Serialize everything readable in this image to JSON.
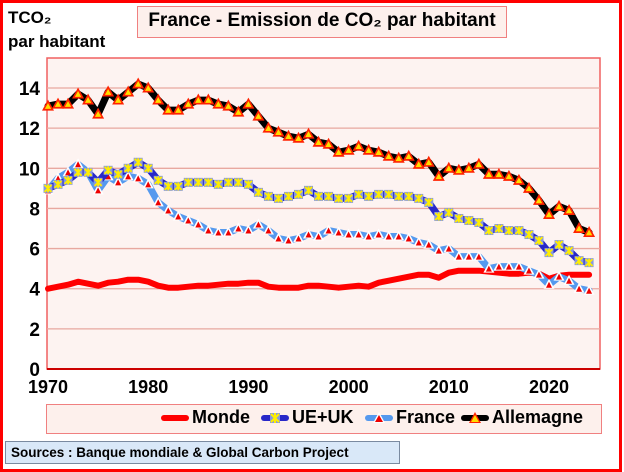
{
  "chart_data": {
    "type": "line",
    "title": "France - Emission de CO₂ par habitant",
    "ylabel_line1": "TCO₂",
    "ylabel_line2": "par habitant",
    "xlabel": "",
    "xlim": [
      1970,
      2024
    ],
    "ylim": [
      0,
      15.5
    ],
    "x_ticks": [
      "1970",
      "1980",
      "1990",
      "2000",
      "2010",
      "2020"
    ],
    "y_ticks": [
      "0",
      "2",
      "4",
      "6",
      "8",
      "10",
      "12",
      "14"
    ],
    "grid": "horizontal",
    "legend_position": "bottom",
    "x": [
      1970,
      1971,
      1972,
      1973,
      1974,
      1975,
      1976,
      1977,
      1978,
      1979,
      1980,
      1981,
      1982,
      1983,
      1984,
      1985,
      1986,
      1987,
      1988,
      1989,
      1990,
      1991,
      1992,
      1993,
      1994,
      1995,
      1996,
      1997,
      1998,
      1999,
      2000,
      2001,
      2002,
      2003,
      2004,
      2005,
      2006,
      2007,
      2008,
      2009,
      2010,
      2011,
      2012,
      2013,
      2014,
      2015,
      2016,
      2017,
      2018,
      2019,
      2020,
      2021,
      2022,
      2023,
      2024
    ],
    "series": [
      {
        "name": "Monde",
        "color": "#ff0000",
        "values": [
          4.0,
          4.1,
          4.2,
          4.35,
          4.25,
          4.15,
          4.3,
          4.35,
          4.45,
          4.45,
          4.35,
          4.15,
          4.05,
          4.05,
          4.1,
          4.15,
          4.15,
          4.2,
          4.25,
          4.25,
          4.3,
          4.3,
          4.1,
          4.05,
          4.05,
          4.05,
          4.15,
          4.15,
          4.1,
          4.05,
          4.1,
          4.15,
          4.1,
          4.3,
          4.4,
          4.5,
          4.6,
          4.7,
          4.7,
          4.55,
          4.8,
          4.9,
          4.9,
          4.9,
          4.85,
          4.8,
          4.75,
          4.75,
          4.8,
          4.75,
          4.5,
          4.65,
          4.7,
          4.7,
          4.7
        ]
      },
      {
        "name": "UE+UK",
        "color": "#2828c8",
        "values": [
          9.0,
          9.2,
          9.4,
          9.8,
          9.8,
          9.3,
          9.9,
          9.7,
          10.0,
          10.3,
          10.0,
          9.4,
          9.1,
          9.1,
          9.3,
          9.3,
          9.3,
          9.2,
          9.3,
          9.3,
          9.2,
          8.8,
          8.6,
          8.5,
          8.6,
          8.7,
          8.9,
          8.6,
          8.6,
          8.5,
          8.5,
          8.7,
          8.6,
          8.7,
          8.7,
          8.6,
          8.6,
          8.5,
          8.3,
          7.6,
          7.8,
          7.5,
          7.4,
          7.3,
          6.9,
          7.0,
          6.9,
          6.9,
          6.7,
          6.4,
          5.8,
          6.2,
          5.9,
          5.4,
          5.3
        ]
      },
      {
        "name": "France",
        "color": "#5599ee",
        "values": [
          8.9,
          9.5,
          9.8,
          10.2,
          9.8,
          8.9,
          9.6,
          9.3,
          9.6,
          9.5,
          9.2,
          8.3,
          7.9,
          7.6,
          7.4,
          7.2,
          6.9,
          6.8,
          6.8,
          7.0,
          6.9,
          7.2,
          6.9,
          6.5,
          6.4,
          6.5,
          6.7,
          6.6,
          6.9,
          6.8,
          6.7,
          6.7,
          6.6,
          6.7,
          6.6,
          6.6,
          6.5,
          6.3,
          6.2,
          5.9,
          6.0,
          5.6,
          5.6,
          5.6,
          5.0,
          5.1,
          5.1,
          5.1,
          4.9,
          4.7,
          4.2,
          4.6,
          4.4,
          4.0,
          3.9
        ]
      },
      {
        "name": "Allemagne",
        "color": "#000000",
        "values": [
          13.1,
          13.2,
          13.2,
          13.7,
          13.4,
          12.7,
          13.8,
          13.4,
          13.8,
          14.2,
          14.0,
          13.4,
          12.9,
          12.9,
          13.2,
          13.4,
          13.4,
          13.2,
          13.1,
          12.8,
          13.2,
          12.6,
          12.0,
          11.8,
          11.6,
          11.5,
          11.7,
          11.3,
          11.2,
          10.8,
          10.9,
          11.1,
          10.9,
          10.8,
          10.6,
          10.5,
          10.6,
          10.2,
          10.3,
          9.6,
          10.0,
          9.9,
          10.0,
          10.2,
          9.7,
          9.7,
          9.6,
          9.4,
          9.0,
          8.4,
          7.7,
          8.1,
          7.9,
          7.0,
          6.8
        ]
      }
    ]
  },
  "source": "Sources : Banque mondiale & Global Carbon Project"
}
